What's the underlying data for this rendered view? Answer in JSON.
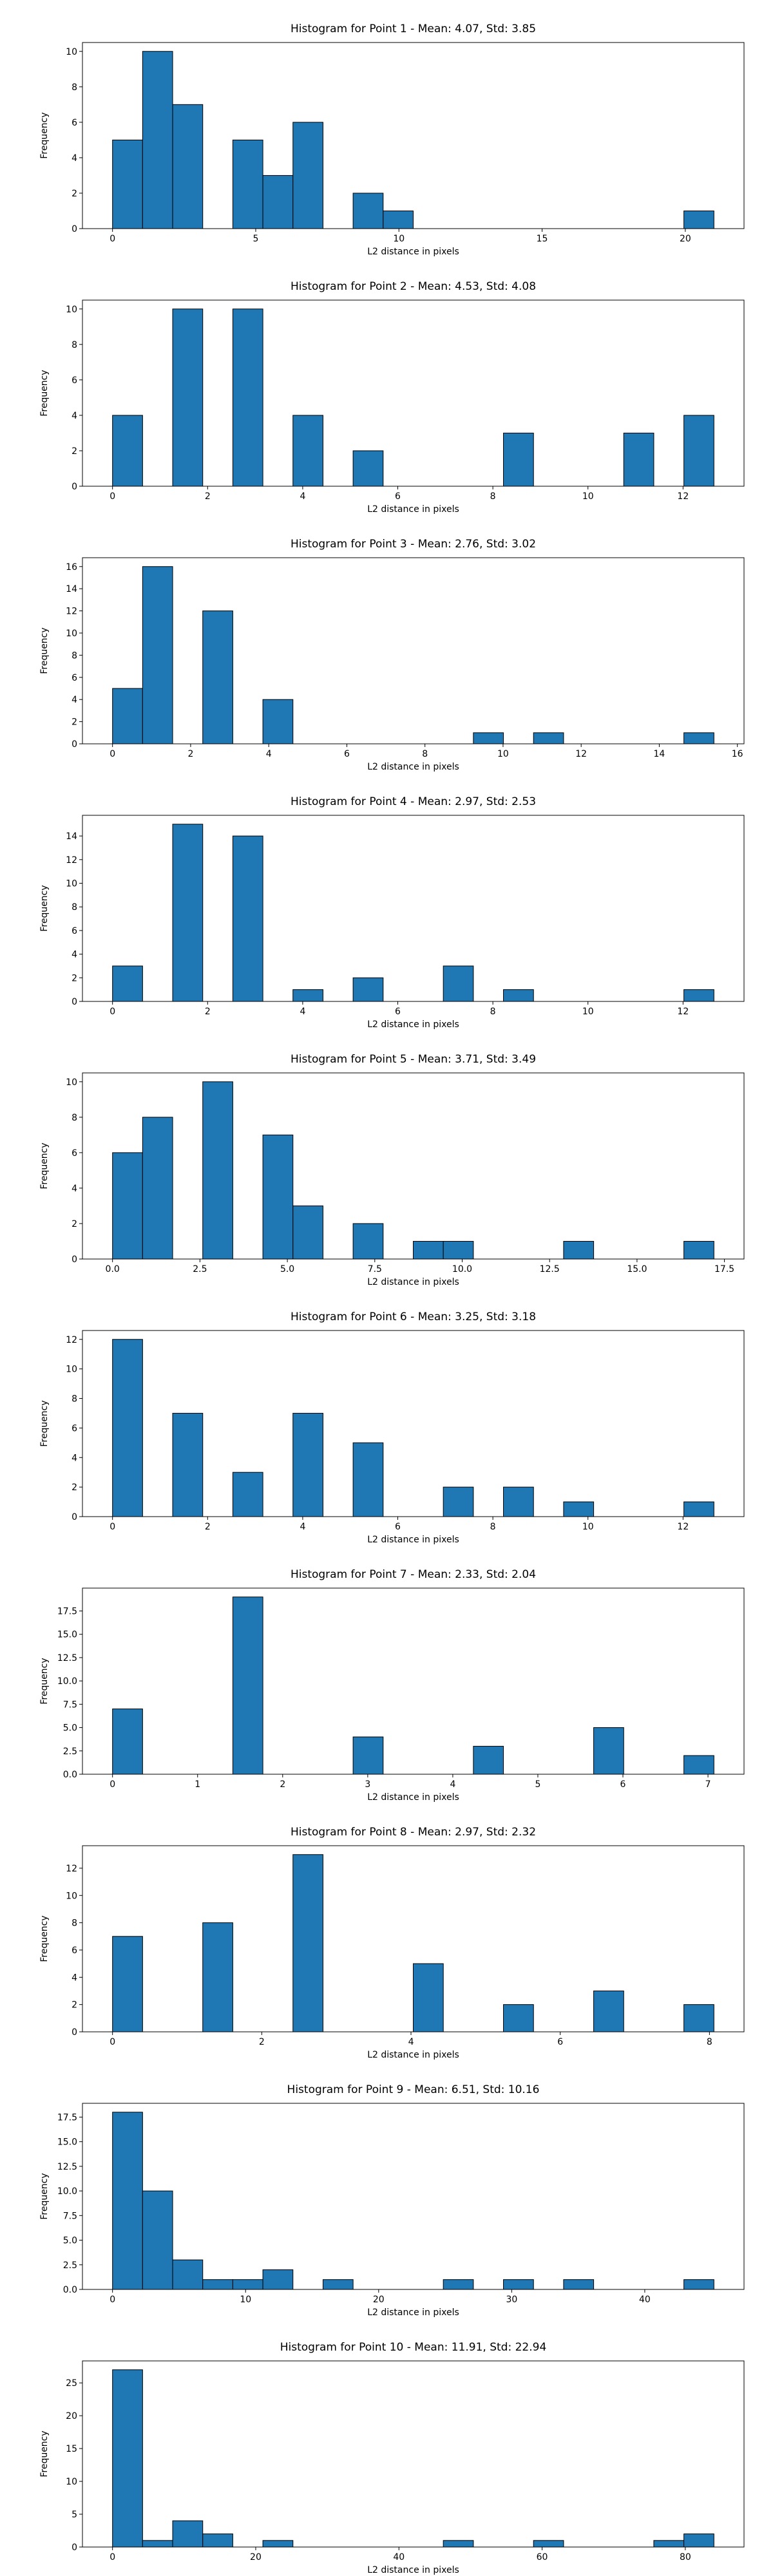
{
  "chart_data": [
    {
      "type": "histogram",
      "title": "Histogram for Point 1 - Mean: 4.07, Std: 3.85",
      "x_label": "L2 distance in pixels",
      "y_label": "Frequency",
      "color": "#1f77b4",
      "edgecolor": "#000000",
      "bins": [
        0,
        1.05,
        2.1,
        3.15,
        4.2,
        5.25,
        6.3,
        7.35,
        8.4,
        9.45,
        10.5,
        11.55,
        12.6,
        13.65,
        14.7,
        15.75,
        16.8,
        17.85,
        18.9,
        19.95,
        21
      ],
      "values": [
        5,
        10,
        7,
        0,
        5,
        3,
        6,
        0,
        2,
        1,
        0,
        0,
        0,
        0,
        0,
        0,
        0,
        0,
        0,
        1
      ],
      "xlim": [
        -1.05,
        22.05
      ],
      "xticks": [
        0,
        5,
        10,
        15,
        20
      ],
      "ylim": [
        0,
        10.5
      ],
      "yticks": [
        0,
        2,
        4,
        6,
        8,
        10
      ]
    },
    {
      "type": "histogram",
      "title": "Histogram for Point 2 - Mean: 4.53, Std: 4.08",
      "x_label": "L2 distance in pixels",
      "y_label": "Frequency",
      "color": "#1f77b4",
      "edgecolor": "#000000",
      "bins": [
        0,
        0.6325,
        1.265,
        1.8975,
        2.53,
        3.1625,
        3.795,
        4.4275,
        5.06,
        5.6925,
        6.325,
        6.9575,
        7.59,
        8.2225,
        8.855,
        9.4875,
        10.12,
        10.7525,
        11.385,
        12.0175,
        12.65
      ],
      "values": [
        4,
        0,
        10,
        0,
        10,
        0,
        4,
        0,
        2,
        0,
        0,
        0,
        0,
        3,
        0,
        0,
        0,
        3,
        0,
        4
      ],
      "xlim": [
        -0.6325,
        13.2825
      ],
      "xticks": [
        0,
        2,
        4,
        6,
        8,
        10,
        12
      ],
      "ylim": [
        0,
        10.5
      ],
      "yticks": [
        0,
        2,
        4,
        6,
        8,
        10
      ]
    },
    {
      "type": "histogram",
      "title": "Histogram for Point 3 - Mean: 2.76, Std: 3.02",
      "x_label": "L2 distance in pixels",
      "y_label": "Frequency",
      "color": "#1f77b4",
      "edgecolor": "#000000",
      "bins": [
        0,
        0.77,
        1.54,
        2.31,
        3.08,
        3.85,
        4.62,
        5.39,
        6.16,
        6.93,
        7.7,
        8.47,
        9.24,
        10.01,
        10.78,
        11.55,
        12.32,
        13.09,
        13.86,
        14.63,
        15.4
      ],
      "values": [
        5,
        16,
        0,
        12,
        0,
        4,
        0,
        0,
        0,
        0,
        0,
        0,
        1,
        0,
        1,
        0,
        0,
        0,
        0,
        1
      ],
      "xlim": [
        -0.77,
        16.17
      ],
      "xticks": [
        0,
        2,
        4,
        6,
        8,
        10,
        12,
        14,
        16
      ],
      "ylim": [
        0,
        16.8
      ],
      "yticks": [
        0,
        2,
        4,
        6,
        8,
        10,
        12,
        14,
        16
      ]
    },
    {
      "type": "histogram",
      "title": "Histogram for Point 4 - Mean: 2.97, Std: 2.53",
      "x_label": "L2 distance in pixels",
      "y_label": "Frequency",
      "color": "#1f77b4",
      "edgecolor": "#000000",
      "bins": [
        0,
        0.6325,
        1.265,
        1.8975,
        2.53,
        3.1625,
        3.795,
        4.4275,
        5.06,
        5.6925,
        6.325,
        6.9575,
        7.59,
        8.2225,
        8.855,
        9.4875,
        10.12,
        10.7525,
        11.385,
        12.0175,
        12.65
      ],
      "values": [
        3,
        0,
        15,
        0,
        14,
        0,
        1,
        0,
        2,
        0,
        0,
        3,
        0,
        1,
        0,
        0,
        0,
        0,
        0,
        1
      ],
      "xlim": [
        -0.6325,
        13.2825
      ],
      "xticks": [
        0,
        2,
        4,
        6,
        8,
        10,
        12
      ],
      "ylim": [
        0,
        15.75
      ],
      "yticks": [
        0,
        2,
        4,
        6,
        8,
        10,
        12,
        14
      ]
    },
    {
      "type": "histogram",
      "title": "Histogram for Point 5 - Mean: 3.71, Std: 3.49",
      "x_label": "L2 distance in pixels",
      "y_label": "Frequency",
      "color": "#1f77b4",
      "edgecolor": "#000000",
      "bins": [
        0,
        0.86,
        1.72,
        2.58,
        3.44,
        4.3,
        5.16,
        6.02,
        6.88,
        7.74,
        8.6,
        9.46,
        10.32,
        11.18,
        12.04,
        12.9,
        13.76,
        14.62,
        15.48,
        16.34,
        17.2
      ],
      "values": [
        6,
        8,
        0,
        10,
        0,
        7,
        3,
        0,
        2,
        0,
        1,
        1,
        0,
        0,
        0,
        1,
        0,
        0,
        0,
        1
      ],
      "xlim": [
        -0.86,
        18.06
      ],
      "xticks": [
        {
          "value": 0,
          "label": "0.0"
        },
        {
          "value": 2.5,
          "label": "2.5"
        },
        {
          "value": 5,
          "label": "5.0"
        },
        {
          "value": 7.5,
          "label": "7.5"
        },
        {
          "value": 10,
          "label": "10.0"
        },
        {
          "value": 12.5,
          "label": "12.5"
        },
        {
          "value": 15,
          "label": "15.0"
        },
        {
          "value": 17.5,
          "label": "17.5"
        }
      ],
      "ylim": [
        0,
        10.5
      ],
      "yticks": [
        0,
        2,
        4,
        6,
        8,
        10
      ]
    },
    {
      "type": "histogram",
      "title": "Histogram for Point 6 - Mean: 3.25, Std: 3.18",
      "x_label": "L2 distance in pixels",
      "y_label": "Frequency",
      "color": "#1f77b4",
      "edgecolor": "#000000",
      "bins": [
        0,
        0.6325,
        1.265,
        1.8975,
        2.53,
        3.1625,
        3.795,
        4.4275,
        5.06,
        5.6925,
        6.325,
        6.9575,
        7.59,
        8.2225,
        8.855,
        9.4875,
        10.12,
        10.7525,
        11.385,
        12.0175,
        12.65
      ],
      "values": [
        12,
        0,
        7,
        0,
        3,
        0,
        7,
        0,
        5,
        0,
        0,
        2,
        0,
        2,
        0,
        1,
        0,
        0,
        0,
        1
      ],
      "xlim": [
        -0.6325,
        13.2825
      ],
      "xticks": [
        0,
        2,
        4,
        6,
        8,
        10,
        12
      ],
      "ylim": [
        0,
        12.6
      ],
      "yticks": [
        0,
        2,
        4,
        6,
        8,
        10,
        12
      ]
    },
    {
      "type": "histogram",
      "title": "Histogram for Point 7 - Mean: 2.33, Std: 2.04",
      "x_label": "L2 distance in pixels",
      "y_label": "Frequency",
      "color": "#1f77b4",
      "edgecolor": "#000000",
      "bins": [
        0,
        0.3535,
        0.707,
        1.0605,
        1.414,
        1.7675,
        2.121,
        2.4745,
        2.828,
        3.1815,
        3.535,
        3.8885,
        4.242,
        4.5955,
        4.949,
        5.3025,
        5.656,
        6.0095,
        6.363,
        6.7165,
        7.07
      ],
      "values": [
        7,
        0,
        0,
        0,
        19,
        0,
        0,
        0,
        4,
        0,
        0,
        0,
        3,
        0,
        0,
        0,
        5,
        0,
        0,
        2
      ],
      "xlim": [
        -0.3535,
        7.4235
      ],
      "xticks": [
        0,
        1,
        2,
        3,
        4,
        5,
        6,
        7
      ],
      "ylim": [
        0,
        19.95
      ],
      "yticks": [
        {
          "value": 0,
          "label": "0.0"
        },
        {
          "value": 2.5,
          "label": "2.5"
        },
        {
          "value": 5,
          "label": "5.0"
        },
        {
          "value": 7.5,
          "label": "7.5"
        },
        {
          "value": 10,
          "label": "10.0"
        },
        {
          "value": 12.5,
          "label": "12.5"
        },
        {
          "value": 15,
          "label": "15.0"
        },
        {
          "value": 17.5,
          "label": "17.5"
        }
      ]
    },
    {
      "type": "histogram",
      "title": "Histogram for Point 8 - Mean: 2.97, Std: 2.32",
      "x_label": "L2 distance in pixels",
      "y_label": "Frequency",
      "color": "#1f77b4",
      "edgecolor": "#000000",
      "bins": [
        0,
        0.403,
        0.806,
        1.209,
        1.612,
        2.015,
        2.418,
        2.821,
        3.224,
        3.627,
        4.03,
        4.433,
        4.836,
        5.239,
        5.642,
        6.045,
        6.448,
        6.851,
        7.254,
        7.657,
        8.06
      ],
      "values": [
        7,
        0,
        0,
        8,
        0,
        0,
        13,
        0,
        0,
        0,
        5,
        0,
        0,
        2,
        0,
        0,
        3,
        0,
        0,
        2
      ],
      "xlim": [
        -0.403,
        8.463
      ],
      "xticks": [
        0,
        2,
        4,
        6,
        8
      ],
      "ylim": [
        0,
        13.65
      ],
      "yticks": [
        0,
        2,
        4,
        6,
        8,
        10,
        12
      ]
    },
    {
      "type": "histogram",
      "title": "Histogram for Point 9 - Mean: 6.51, Std: 10.16",
      "x_label": "L2 distance in pixels",
      "y_label": "Frequency",
      "color": "#1f77b4",
      "edgecolor": "#000000",
      "bins": [
        0,
        2.26,
        4.52,
        6.78,
        9.04,
        11.3,
        13.56,
        15.82,
        18.08,
        20.34,
        22.6,
        24.86,
        27.12,
        29.38,
        31.64,
        33.9,
        36.16,
        38.42,
        40.68,
        42.94,
        45.2
      ],
      "values": [
        18,
        10,
        3,
        1,
        1,
        2,
        0,
        1,
        0,
        0,
        0,
        1,
        0,
        1,
        0,
        1,
        0,
        0,
        0,
        1
      ],
      "xlim": [
        -2.26,
        47.46
      ],
      "xticks": [
        0,
        10,
        20,
        30,
        40
      ],
      "ylim": [
        0,
        18.9
      ],
      "yticks": [
        {
          "value": 0,
          "label": "0.0"
        },
        {
          "value": 2.5,
          "label": "2.5"
        },
        {
          "value": 5,
          "label": "5.0"
        },
        {
          "value": 7.5,
          "label": "7.5"
        },
        {
          "value": 10,
          "label": "10.0"
        },
        {
          "value": 12.5,
          "label": "12.5"
        },
        {
          "value": 15,
          "label": "15.0"
        },
        {
          "value": 17.5,
          "label": "17.5"
        }
      ]
    },
    {
      "type": "histogram",
      "title": "Histogram for Point 10 - Mean: 11.91, Std: 22.94",
      "x_label": "L2 distance in pixels",
      "y_label": "Frequency",
      "color": "#1f77b4",
      "edgecolor": "#000000",
      "bins": [
        0,
        4.2,
        8.4,
        12.6,
        16.8,
        21,
        25.2,
        29.4,
        33.6,
        37.8,
        42,
        46.2,
        50.4,
        54.6,
        58.8,
        63,
        67.2,
        71.4,
        75.6,
        79.8,
        84
      ],
      "values": [
        27,
        1,
        4,
        2,
        0,
        1,
        0,
        0,
        0,
        0,
        0,
        1,
        0,
        0,
        1,
        0,
        0,
        0,
        1,
        2
      ],
      "xlim": [
        -4.2,
        88.2
      ],
      "xticks": [
        0,
        20,
        40,
        60,
        80
      ],
      "ylim": [
        0,
        28.35
      ],
      "yticks": [
        0,
        5,
        10,
        15,
        20,
        25
      ]
    }
  ]
}
